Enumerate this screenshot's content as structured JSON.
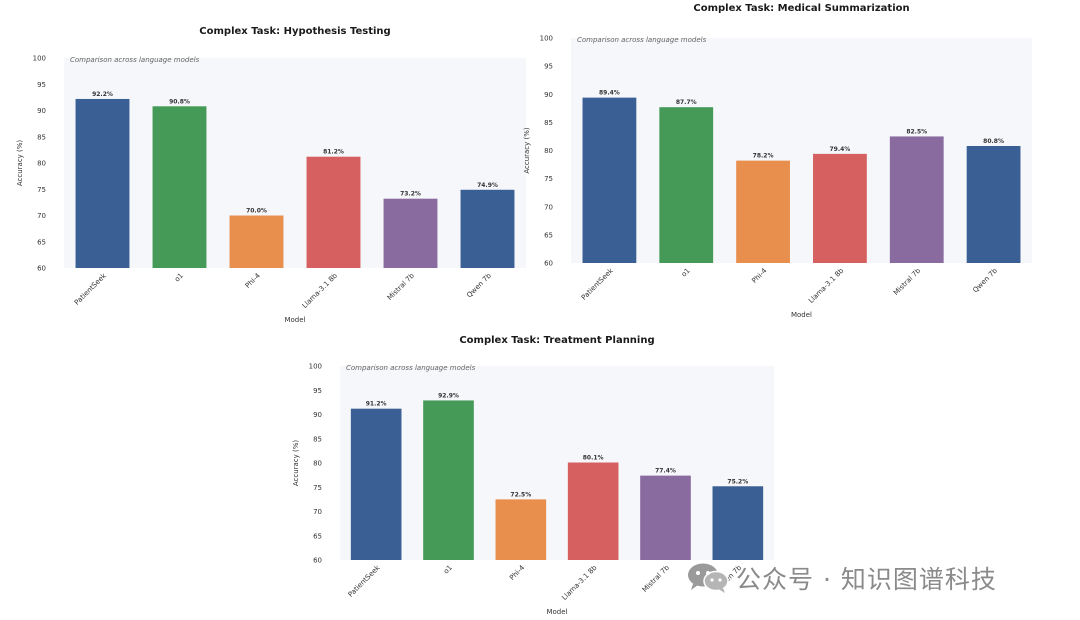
{
  "chart_data": [
    {
      "type": "bar",
      "title": "Complex Task: Hypothesis Testing",
      "subtitle": "Comparison across language models",
      "xlabel": "Model",
      "ylabel": "Accuracy (%)",
      "ylim": [
        60,
        100
      ],
      "yticks": [
        60,
        65,
        70,
        75,
        80,
        85,
        90,
        95,
        100
      ],
      "categories": [
        "PatientSeek",
        "o1",
        "Phi-4",
        "Llama-3.1 8b",
        "Mistral 7b",
        "Qwen 7b"
      ],
      "values": [
        92.2,
        90.8,
        70.0,
        81.2,
        73.2,
        74.9
      ],
      "value_labels": [
        "92.2%",
        "90.8%",
        "70.0%",
        "81.2%",
        "73.2%",
        "74.9%"
      ],
      "colors": [
        "#3a5f94",
        "#449a56",
        "#e98f4d",
        "#d65f5f",
        "#8a6b9f",
        "#3a5f94"
      ],
      "grid": false
    },
    {
      "type": "bar",
      "title": "Complex Task: Medical Summarization",
      "subtitle": "Comparison across language models",
      "xlabel": "Model",
      "ylabel": "Accuracy (%)",
      "ylim": [
        60,
        100
      ],
      "yticks": [
        60,
        65,
        70,
        75,
        80,
        85,
        90,
        95,
        100
      ],
      "categories": [
        "PatientSeek",
        "o1",
        "Phi-4",
        "Llama-3.1 8b",
        "Mistral 7b",
        "Qwen 7b"
      ],
      "values": [
        89.4,
        87.7,
        78.2,
        79.4,
        82.5,
        80.8
      ],
      "value_labels": [
        "89.4%",
        "87.7%",
        "78.2%",
        "79.4%",
        "82.5%",
        "80.8%"
      ],
      "colors": [
        "#3a5f94",
        "#449a56",
        "#e98f4d",
        "#d65f5f",
        "#8a6b9f",
        "#3a5f94"
      ],
      "grid": false
    },
    {
      "type": "bar",
      "title": "Complex Task: Treatment Planning",
      "subtitle": "Comparison across language models",
      "xlabel": "Model",
      "ylabel": "Accuracy (%)",
      "ylim": [
        60,
        100
      ],
      "yticks": [
        60,
        65,
        70,
        75,
        80,
        85,
        90,
        95,
        100
      ],
      "categories": [
        "PatientSeek",
        "o1",
        "Phi-4",
        "Llama-3.1 8b",
        "Mistral 7b",
        "Qwen 7b"
      ],
      "values": [
        91.2,
        92.9,
        72.5,
        80.1,
        77.4,
        75.2
      ],
      "value_labels": [
        "91.2%",
        "92.9%",
        "72.5%",
        "80.1%",
        "77.4%",
        "75.2%"
      ],
      "colors": [
        "#3a5f94",
        "#449a56",
        "#e98f4d",
        "#d65f5f",
        "#8a6b9f",
        "#3a5f94"
      ],
      "grid": false
    }
  ],
  "watermark": {
    "icon": "wechat-icon",
    "text": "公众号 · 知识图谱科技"
  }
}
